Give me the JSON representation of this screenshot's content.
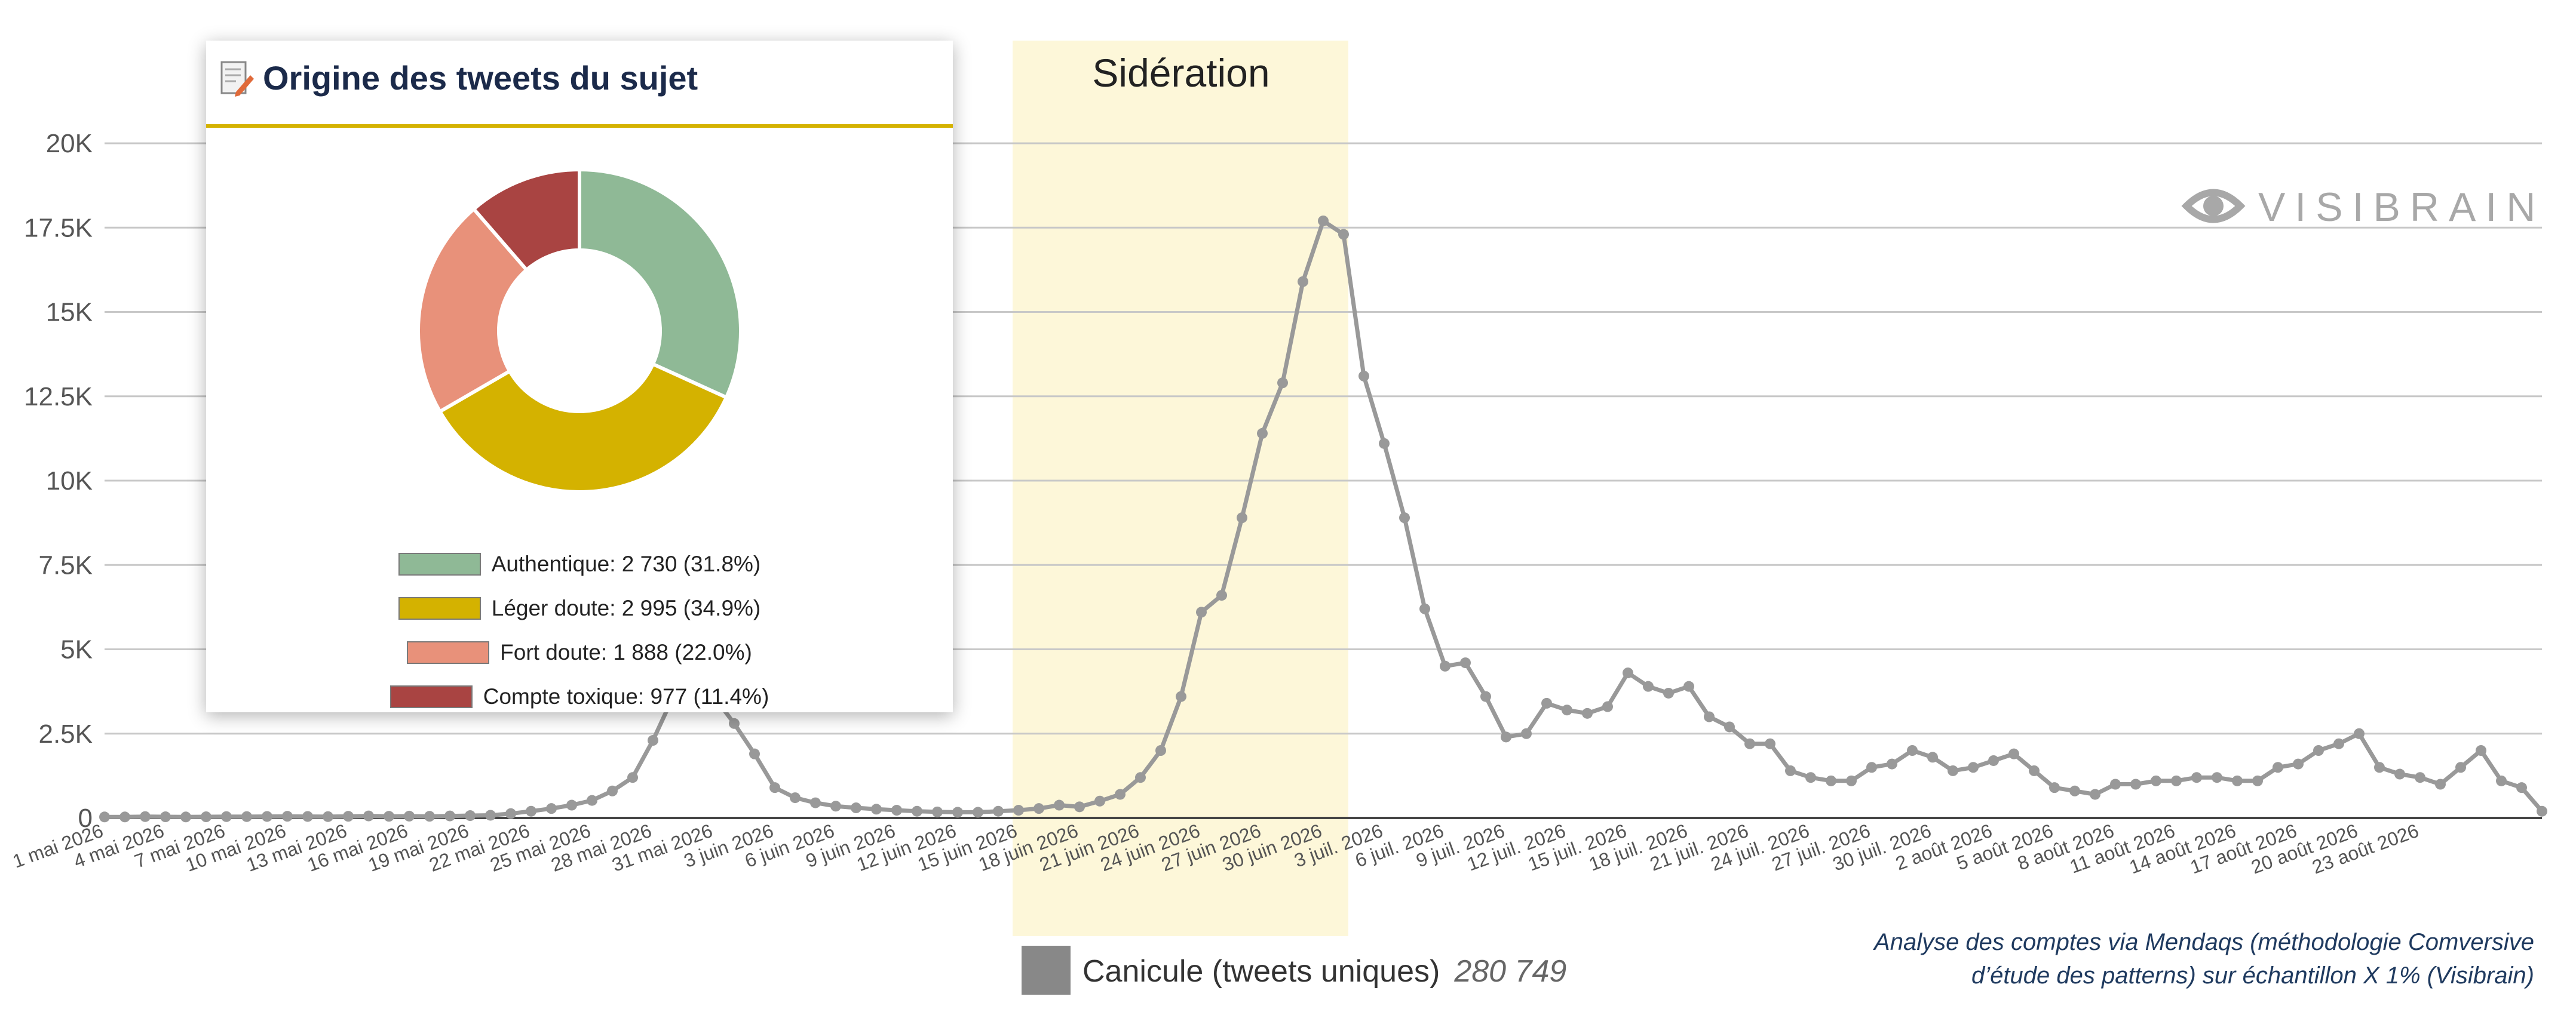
{
  "chart_data": [
    {
      "type": "line",
      "series": [
        {
          "name": "Canicule (tweets uniques)",
          "total": "280 749",
          "color": "#999999",
          "values": [
            30,
            30,
            40,
            35,
            30,
            35,
            40,
            40,
            45,
            50,
            45,
            40,
            50,
            60,
            50,
            55,
            50,
            60,
            70,
            80,
            130,
            200,
            280,
            380,
            520,
            800,
            1200,
            2300,
            3600,
            4000,
            3600,
            2800,
            1900,
            900,
            600,
            450,
            350,
            300,
            260,
            230,
            200,
            180,
            170,
            170,
            200,
            230,
            280,
            380,
            330,
            500,
            700,
            1200,
            2000,
            3600,
            6100,
            6600,
            8900,
            11400,
            12900,
            15900,
            17700,
            17300,
            13100,
            11100,
            8900,
            6200,
            4500,
            4600,
            3600,
            2400,
            2500,
            3400,
            3200,
            3100,
            3300,
            4300,
            3900,
            3700,
            3900,
            3000,
            2700,
            2200,
            2200,
            1400,
            1200,
            1100,
            1100,
            1500,
            1600,
            2000,
            1800,
            1400,
            1500,
            1700,
            1900,
            1400,
            900,
            800,
            700,
            1000,
            1000,
            1100,
            1100,
            1200,
            1200,
            1100,
            1100,
            1500,
            1600,
            2000,
            2200,
            2500,
            1500,
            1300,
            1200,
            1000,
            1500,
            2000,
            1100,
            900,
            200
          ]
        }
      ],
      "x_start": "1 mai 2026",
      "x_end": "23 août 2026",
      "x_ticks": [
        "1 mai 2026",
        "4 mai 2026",
        "7 mai 2026",
        "10 mai 2026",
        "13 mai 2026",
        "16 mai 2026",
        "19 mai 2026",
        "22 mai 2026",
        "25 mai 2026",
        "28 mai 2026",
        "31 mai 2026",
        "3 juin 2026",
        "6 juin 2026",
        "9 juin 2026",
        "12 juin 2026",
        "15 juin 2026",
        "18 juin 2026",
        "21 juin 2026",
        "24 juin 2026",
        "27 juin 2026",
        "30 juin 2026",
        "3 juil. 2026",
        "6 juil. 2026",
        "9 juil. 2026",
        "12 juil. 2026",
        "15 juil. 2026",
        "18 juil. 2026",
        "21 juil. 2026",
        "24 juil. 2026",
        "27 juil. 2026",
        "30 juil. 2026",
        "2 août 2026",
        "5 août 2026",
        "8 août 2026",
        "11 août 2026",
        "14 août 2026",
        "17 août 2026",
        "20 août 2026",
        "23 août 2026"
      ],
      "y_ticks": [
        "0",
        "2.5K",
        "5K",
        "7.5K",
        "10K",
        "12.5K",
        "15K",
        "17.5K",
        "20K"
      ],
      "ylim": [
        0,
        20000
      ],
      "grid": true,
      "legend_position": "bottom",
      "highlight": {
        "label": "Sidération",
        "from": "15 juin 2026",
        "to": "1 juil. 2026",
        "color": "#fdf7d9"
      },
      "watermark": "VISIBRAIN"
    },
    {
      "type": "pie",
      "title": "Origine des tweets du sujet",
      "slices": [
        {
          "label": "Authentique",
          "value": 2730,
          "percent": 31.8,
          "color": "#8fb996",
          "legend": "Authentique: 2 730 (31.8%)"
        },
        {
          "label": "Léger doute",
          "value": 2995,
          "percent": 34.9,
          "color": "#d4b200",
          "legend": "Léger doute: 2 995 (34.9%)"
        },
        {
          "label": "Fort doute",
          "value": 1888,
          "percent": 22.0,
          "color": "#e8917a",
          "legend": "Fort doute: 1 888 (22.0%)"
        },
        {
          "label": "Compte toxique",
          "value": 977,
          "percent": 11.4,
          "color": "#a94442",
          "legend": "Compte toxique: 977 (11.4%)"
        }
      ],
      "donut": true,
      "legend_position": "bottom"
    }
  ],
  "note": {
    "line1": "Analyse des comptes via Mendaqs (méthodologie Comversive",
    "line2": "d’étude des patterns) sur échantillon X 1% (Visibrain)"
  },
  "icons": {
    "inset": "document-edit-icon",
    "logo": "eye-icon"
  }
}
